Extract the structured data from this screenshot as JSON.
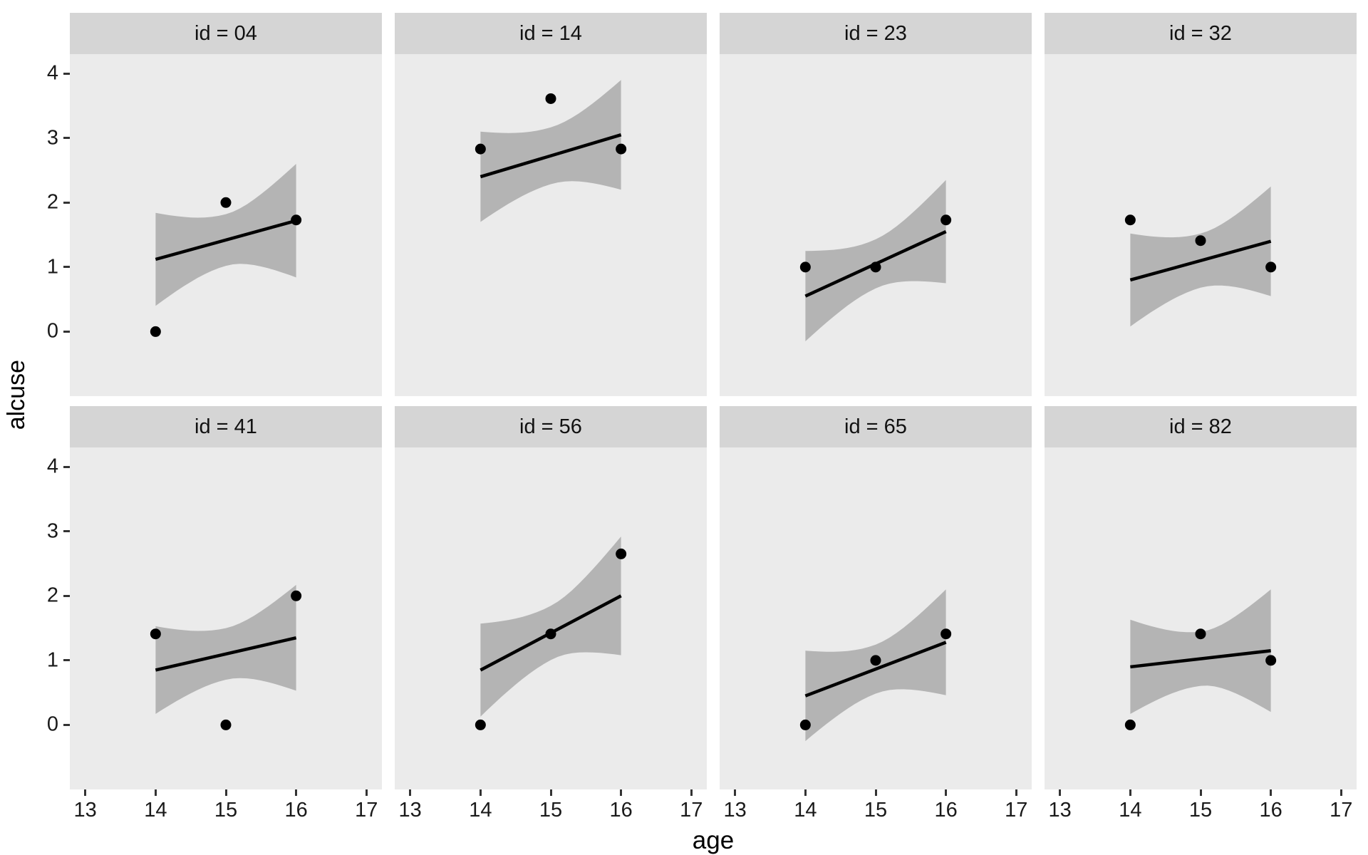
{
  "colors": {
    "background": "#ffffff",
    "panel_bg": "#ebebeb",
    "strip_bg": "#d5d5d5",
    "ribbon": "#6868686B",
    "line": "#000000",
    "point": "#000000",
    "tick": "#333333",
    "text": "#1a1a1a"
  },
  "chart_data": {
    "type": "scatter",
    "title": "",
    "xlabel": "age",
    "ylabel": "alcuse",
    "facet_variable": "id",
    "x_ticks": [
      "13",
      "14",
      "15",
      "16",
      "17"
    ],
    "y_ticks": [
      "0",
      "1",
      "2",
      "3",
      "4"
    ],
    "xlim": [
      12.78,
      17.22
    ],
    "ylim": [
      -1.0,
      4.3
    ],
    "grid": "off",
    "legend": "none",
    "facets": [
      {
        "label": "id = 04",
        "points": {
          "x": [
            14,
            15,
            16
          ],
          "y": [
            0,
            2,
            1.73
          ]
        },
        "fit": {
          "y_at_14": 1.12,
          "y_at_16": 1.72
        },
        "ribbon_halfwidth": {
          "at_14": 0.72,
          "at_15": 0.4,
          "at_16": 0.88
        }
      },
      {
        "label": "id = 14",
        "points": {
          "x": [
            14,
            15,
            16
          ],
          "y": [
            2.83,
            3.61,
            2.83
          ]
        },
        "fit": {
          "y_at_14": 2.4,
          "y_at_16": 3.05
        },
        "ribbon_halfwidth": {
          "at_14": 0.7,
          "at_15": 0.44,
          "at_16": 0.85
        }
      },
      {
        "label": "id = 23",
        "points": {
          "x": [
            14,
            15,
            16
          ],
          "y": [
            1,
            1,
            1.73
          ]
        },
        "fit": {
          "y_at_14": 0.55,
          "y_at_16": 1.55
        },
        "ribbon_halfwidth": {
          "at_14": 0.7,
          "at_15": 0.38,
          "at_16": 0.8
        }
      },
      {
        "label": "id = 32",
        "points": {
          "x": [
            14,
            15,
            16
          ],
          "y": [
            1.73,
            1.41,
            1
          ]
        },
        "fit": {
          "y_at_14": 0.8,
          "y_at_16": 1.4
        },
        "ribbon_halfwidth": {
          "at_14": 0.72,
          "at_15": 0.42,
          "at_16": 0.85
        }
      },
      {
        "label": "id = 41",
        "points": {
          "x": [
            14,
            15,
            16
          ],
          "y": [
            1.41,
            0,
            2
          ]
        },
        "fit": {
          "y_at_14": 0.85,
          "y_at_16": 1.35
        },
        "ribbon_halfwidth": {
          "at_14": 0.68,
          "at_15": 0.4,
          "at_16": 0.82
        }
      },
      {
        "label": "id = 56",
        "points": {
          "x": [
            14,
            15,
            16
          ],
          "y": [
            0,
            1.41,
            2.65
          ]
        },
        "fit": {
          "y_at_14": 0.85,
          "y_at_16": 2.0
        },
        "ribbon_halfwidth": {
          "at_14": 0.72,
          "at_15": 0.42,
          "at_16": 0.92
        }
      },
      {
        "label": "id = 65",
        "points": {
          "x": [
            14,
            15,
            16
          ],
          "y": [
            0,
            1,
            1.41
          ]
        },
        "fit": {
          "y_at_14": 0.45,
          "y_at_16": 1.28
        },
        "ribbon_halfwidth": {
          "at_14": 0.7,
          "at_15": 0.38,
          "at_16": 0.82
        }
      },
      {
        "label": "id = 82",
        "points": {
          "x": [
            14,
            15,
            16
          ],
          "y": [
            0,
            1.41,
            1
          ]
        },
        "fit": {
          "y_at_14": 0.9,
          "y_at_16": 1.15
        },
        "ribbon_halfwidth": {
          "at_14": 0.73,
          "at_15": 0.42,
          "at_16": 0.95
        }
      }
    ]
  }
}
